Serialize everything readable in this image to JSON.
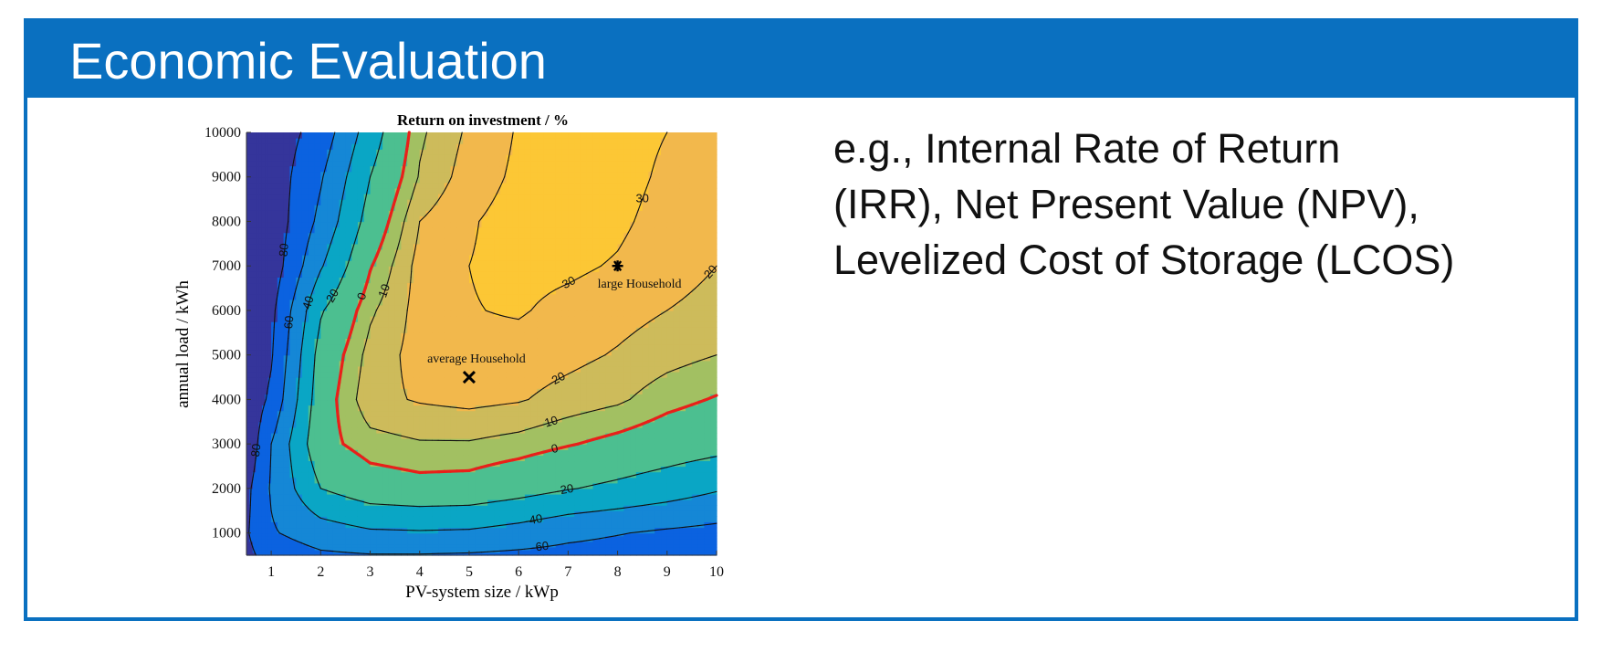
{
  "header": {
    "title": "Economic Evaluation"
  },
  "body": {
    "lines": [
      "e.g., Internal Rate of Return",
      "(IRR), Net Present Value (NPV),",
      "Levelized Cost of Storage (LCOS)"
    ]
  },
  "chart_data": {
    "type": "contour",
    "title": "Return on investment / %",
    "x_label": "PV-system size / kWp",
    "y_label": "annual load / kWh",
    "x": [
      0.5,
      1,
      2,
      3,
      4,
      5,
      6,
      7,
      8,
      9,
      10
    ],
    "y": [
      500,
      1000,
      2000,
      3000,
      4000,
      5000,
      6000,
      7000,
      8000,
      9000,
      10000
    ],
    "z": [
      [
        -85,
        -72,
        -63,
        -61,
        -61,
        -62,
        -64,
        -66,
        -68,
        -70,
        -72
      ],
      [
        -82,
        -62,
        -50,
        -43,
        -42,
        -43,
        -48,
        -55,
        -59,
        -63,
        -66
      ],
      [
        -85,
        -58,
        -20,
        -8,
        -5,
        -6,
        -12,
        -19,
        -24,
        -30,
        -38
      ],
      [
        -96,
        -60,
        -5,
        6,
        9,
        9,
        6,
        1,
        -4,
        -9,
        -13
      ],
      [
        -95,
        -76,
        -8,
        17,
        21,
        23,
        21,
        16,
        12,
        4,
        -1
      ],
      [
        -98,
        -82,
        -12,
        14,
        24,
        27,
        26,
        23,
        19,
        14,
        10
      ],
      [
        -98,
        -85,
        -22,
        8,
        24,
        29.5,
        31,
        27,
        24,
        20,
        17
      ],
      [
        -97,
        -92,
        -42,
        -1,
        24,
        30,
        33,
        32,
        29,
        24,
        20
      ],
      [
        -96,
        -93,
        -55,
        -12,
        20,
        29,
        34,
        36,
        32,
        26,
        23
      ],
      [
        -95,
        -92,
        -62,
        -20,
        11,
        25,
        32,
        35,
        34,
        28,
        25
      ],
      [
        -95,
        -92,
        -72,
        -30,
        8,
        22,
        31,
        34,
        34,
        30,
        26
      ]
    ],
    "levels": [
      -80,
      -60,
      -40,
      -20,
      0,
      10,
      20,
      30
    ],
    "colors": [
      "#35359b",
      "#0b62e0",
      "#1587d6",
      "#0aa6c5",
      "#4cbf90",
      "#a2c062",
      "#cdbb5b",
      "#f2b84c",
      "#fcc735"
    ],
    "line_color": "#111111",
    "highlight_level": 0,
    "highlight_color": "#e8201a",
    "xlim": [
      0.5,
      10
    ],
    "ylim": [
      500,
      10000
    ],
    "xticks": [
      1,
      2,
      3,
      4,
      5,
      6,
      7,
      8,
      9,
      10
    ],
    "yticks": [
      1000,
      2000,
      3000,
      4000,
      5000,
      6000,
      7000,
      8000,
      9000,
      10000
    ],
    "markers": [
      {
        "label": "average Household",
        "x": 5,
        "y": 4500,
        "symbol": "x",
        "label_position": "above"
      },
      {
        "label": "large Household",
        "x": 8,
        "y": 7000,
        "symbol": "*",
        "label_position": "below"
      }
    ]
  }
}
